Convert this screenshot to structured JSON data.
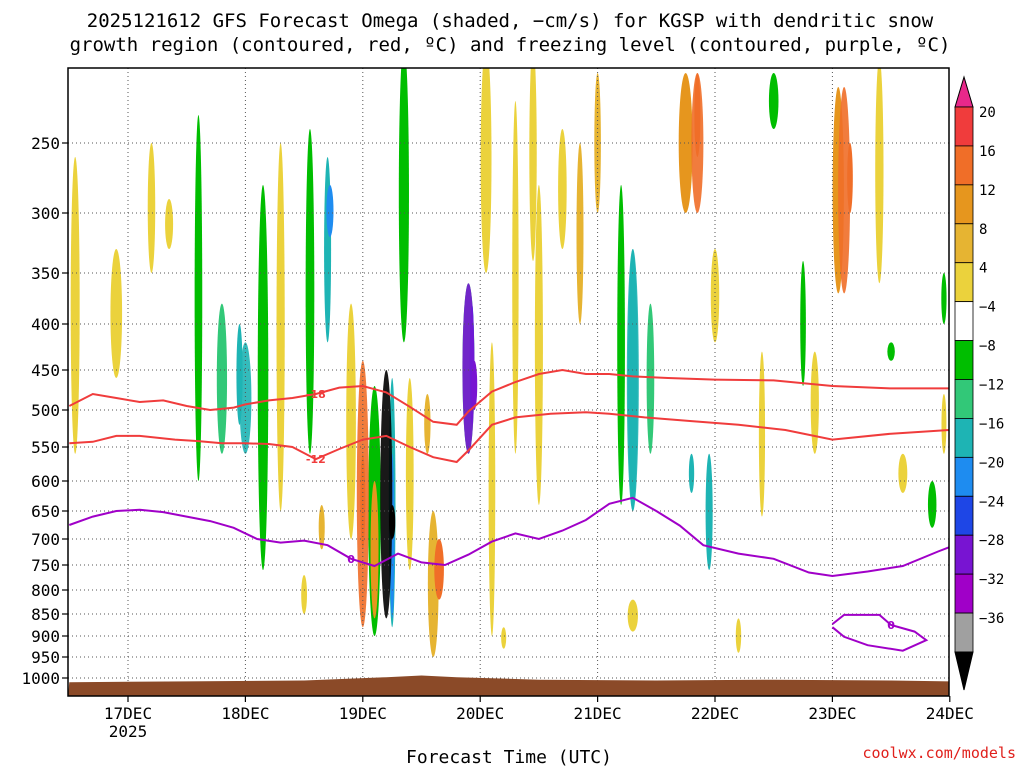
{
  "title_line1": "2025121612 GFS Forecast Omega (shaded, −cm/s) for KGSP with dendritic snow",
  "title_line2": "growth region (contoured, red, ºC) and freezing level (contoured, purple, ºC)",
  "xlabel": "Forecast Time (UTC)",
  "credit": "coolwx.com/models",
  "chart_data": {
    "type": "heatmap",
    "title": "2025121612 GFS Forecast Omega (shaded, −cm/s) for KGSP with dendritic snow growth region (contoured, red, ºC) and freezing level (contoured, purple, ºC)",
    "xlabel": "Forecast Time (UTC)",
    "ylabel": "",
    "x_ticks": [
      "17DEC",
      "18DEC",
      "19DEC",
      "20DEC",
      "21DEC",
      "22DEC",
      "23DEC",
      "24DEC"
    ],
    "x_tick_year": "2025",
    "y_ticks": [
      250,
      300,
      350,
      400,
      450,
      500,
      550,
      600,
      650,
      700,
      750,
      800,
      850,
      900,
      950,
      1000
    ],
    "y_axis": "pressure (hPa), inverted",
    "ylim": [
      200,
      1050
    ],
    "xlim_days_from_17dec": [
      -0.5,
      7.0
    ],
    "grid": "dotted",
    "colorbar": {
      "labels": [
        "20",
        "16",
        "12",
        "8",
        "4",
        "−4",
        "−8",
        "−12",
        "−16",
        "−20",
        "−24",
        "−28",
        "−32",
        "−36"
      ],
      "colors": [
        "#e8288a",
        "#f03c3c",
        "#f06e28",
        "#e6961e",
        "#e6b432",
        "#ebd23c",
        "#ffffff",
        "#00be00",
        "#32c878",
        "#1eb4b4",
        "#1e8cf0",
        "#1e46e6",
        "#7814d2",
        "#a000c8",
        "#a0a0a0",
        "#000000"
      ]
    },
    "contours_dgz_red": [
      {
        "label": "-18",
        "level": -18,
        "points": [
          [
            -0.5,
            495
          ],
          [
            -0.3,
            480
          ],
          [
            -0.1,
            485
          ],
          [
            0.1,
            490
          ],
          [
            0.3,
            488
          ],
          [
            0.5,
            495
          ],
          [
            0.7,
            500
          ],
          [
            0.9,
            497
          ],
          [
            1.0,
            493
          ],
          [
            1.2,
            488
          ],
          [
            1.4,
            485
          ],
          [
            1.6,
            480
          ],
          [
            1.8,
            472
          ],
          [
            2.0,
            470
          ],
          [
            2.2,
            478
          ],
          [
            2.4,
            496
          ],
          [
            2.6,
            516
          ],
          [
            2.8,
            520
          ],
          [
            2.9,
            502
          ],
          [
            3.1,
            477
          ],
          [
            3.3,
            465
          ],
          [
            3.5,
            455
          ],
          [
            3.7,
            450
          ],
          [
            3.9,
            455
          ],
          [
            4.1,
            455
          ],
          [
            4.3,
            458
          ],
          [
            4.6,
            460
          ],
          [
            5.0,
            462
          ],
          [
            5.5,
            463
          ],
          [
            6.0,
            470
          ],
          [
            6.5,
            473
          ],
          [
            7.0,
            473
          ]
        ]
      },
      {
        "label": "-12",
        "level": -12,
        "points": [
          [
            -0.5,
            545
          ],
          [
            -0.3,
            543
          ],
          [
            -0.1,
            535
          ],
          [
            0.1,
            535
          ],
          [
            0.4,
            540
          ],
          [
            0.6,
            542
          ],
          [
            0.8,
            545
          ],
          [
            1.0,
            545
          ],
          [
            1.2,
            546
          ],
          [
            1.4,
            550
          ],
          [
            1.6,
            568
          ],
          [
            1.8,
            553
          ],
          [
            2.0,
            540
          ],
          [
            2.2,
            535
          ],
          [
            2.4,
            550
          ],
          [
            2.6,
            565
          ],
          [
            2.8,
            572
          ],
          [
            2.9,
            555
          ],
          [
            3.1,
            520
          ],
          [
            3.3,
            510
          ],
          [
            3.6,
            505
          ],
          [
            3.9,
            503
          ],
          [
            4.1,
            505
          ],
          [
            4.4,
            510
          ],
          [
            4.8,
            515
          ],
          [
            5.2,
            520
          ],
          [
            5.6,
            527
          ],
          [
            6.0,
            540
          ],
          [
            6.5,
            532
          ],
          [
            7.0,
            527
          ]
        ]
      }
    ],
    "contours_freezing_purple": [
      {
        "label": "0",
        "level": 0,
        "points": [
          [
            -0.5,
            675
          ],
          [
            -0.3,
            660
          ],
          [
            -0.1,
            650
          ],
          [
            0.1,
            648
          ],
          [
            0.3,
            652
          ],
          [
            0.5,
            660
          ],
          [
            0.7,
            668
          ],
          [
            0.9,
            680
          ],
          [
            1.1,
            700
          ],
          [
            1.3,
            707
          ],
          [
            1.5,
            703
          ],
          [
            1.7,
            712
          ],
          [
            1.9,
            738
          ],
          [
            2.1,
            752
          ],
          [
            2.3,
            728
          ],
          [
            2.5,
            745
          ],
          [
            2.7,
            750
          ],
          [
            2.9,
            730
          ],
          [
            3.1,
            705
          ],
          [
            3.3,
            690
          ],
          [
            3.5,
            700
          ],
          [
            3.7,
            685
          ],
          [
            3.9,
            666
          ],
          [
            4.1,
            638
          ],
          [
            4.3,
            628
          ],
          [
            4.5,
            650
          ],
          [
            4.7,
            676
          ],
          [
            4.9,
            712
          ],
          [
            5.2,
            728
          ],
          [
            5.5,
            738
          ],
          [
            5.8,
            765
          ],
          [
            6.0,
            772
          ],
          [
            6.3,
            763
          ],
          [
            6.6,
            752
          ],
          [
            6.9,
            724
          ],
          [
            7.0,
            716
          ]
        ]
      },
      {
        "label": "0",
        "level": 0,
        "points": [
          [
            6.0,
            873
          ],
          [
            6.1,
            852
          ],
          [
            6.4,
            852
          ],
          [
            6.5,
            875
          ],
          [
            6.7,
            890
          ],
          [
            6.8,
            910
          ],
          [
            6.6,
            935
          ],
          [
            6.3,
            922
          ],
          [
            6.1,
            902
          ],
          [
            6.0,
            880
          ]
        ]
      }
    ],
    "shaded_omega_features": [
      {
        "x": 1.0,
        "p_top": 420,
        "p_bot": 560,
        "value": -12
      },
      {
        "x": 2.0,
        "p_top": 440,
        "p_bot": 880,
        "value": 12
      },
      {
        "x": 2.2,
        "p_top": 450,
        "p_bot": 860,
        "value": -36
      },
      {
        "x": 2.9,
        "p_top": 360,
        "p_bot": 560,
        "value": -24
      },
      {
        "x": 4.3,
        "p_top": 330,
        "p_bot": 650,
        "value": -12
      },
      {
        "x": 4.85,
        "p_top": 200,
        "p_bot": 300,
        "value": 12
      },
      {
        "x": 6.1,
        "p_top": 210,
        "p_bot": 370,
        "value": 12
      }
    ],
    "terrain_color": "#8b4a28"
  }
}
